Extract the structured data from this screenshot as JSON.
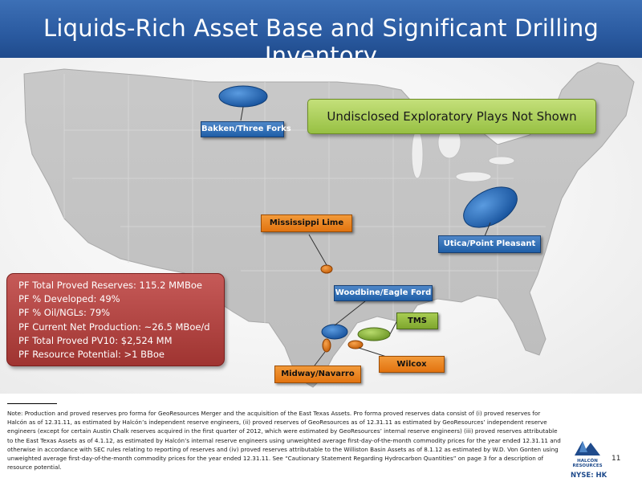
{
  "slide": {
    "title": "Liquids-Rich Asset Base and Significant Drilling Inventory",
    "page_number": "11",
    "ticker": "NYSE: HK"
  },
  "callout": {
    "undisclosed": "Undisclosed Exploratory Plays Not Shown"
  },
  "plays": {
    "bakken": "Bakken/Three Forks",
    "mississippi": "Mississippi Lime",
    "utica": "Utica/Point Pleasant",
    "woodbine": "Woodbine/Eagle Ford",
    "tms": "TMS",
    "wilcox": "Wilcox",
    "midway": "Midway/Navarro"
  },
  "stats": [
    "PF Total Proved Reserves: 115.2 MMBoe",
    "PF % Developed: 49%",
    "PF % Oil/NGLs: 79%",
    "PF Current Net Production: ~26.5 MBoe/d",
    "PF Total Proved PV10: $2,524 MM",
    "PF Resource Potential: >1 BBoe"
  ],
  "footnote": "Note: Production and proved reserves pro forma for GeoResources Merger and the acquisition of the East Texas Assets. Pro forma proved reserves data consist of (i) proved reserves for Halcón as of 12.31.11, as estimated by Halcón’s independent reserve engineers, (ii) proved reserves of GeoResources as of 12.31.11 as estimated by GeoResources’ independent reserve engineers (except for certain Austin Chalk reserves acquired in the first quarter of 2012, which were estimated by GeoResources’ internal reserve engineers) (iii) proved reserves attributable to the East Texas Assets as of 4.1.12, as estimated by Halcón’s internal reserve engineers using unweighted average first-day-of-the-month commodity prices for the year ended 12.31.11 and otherwise in accordance with SEC rules relating to reporting of reserves and (iv) proved reserves attributable to the Williston Basin Assets as of 8.1.12 as estimated by W.D. Von Gonten using unweighted average first-day-of-the-month commodity prices for the year ended 12.31.11. See “Cautionary Statement Regarding Hydrocarbon Quantities” on page 3 for a description of resource potential.",
  "logo": {
    "name": "HALCÓN",
    "sub": "RESOURCES"
  },
  "colors": {
    "title_bar": "#2a5aa0",
    "play_blue": "#1f5fa8",
    "play_orange": "#e2730f",
    "play_green": "#7ea62d",
    "stats_box": "#9f3431"
  }
}
